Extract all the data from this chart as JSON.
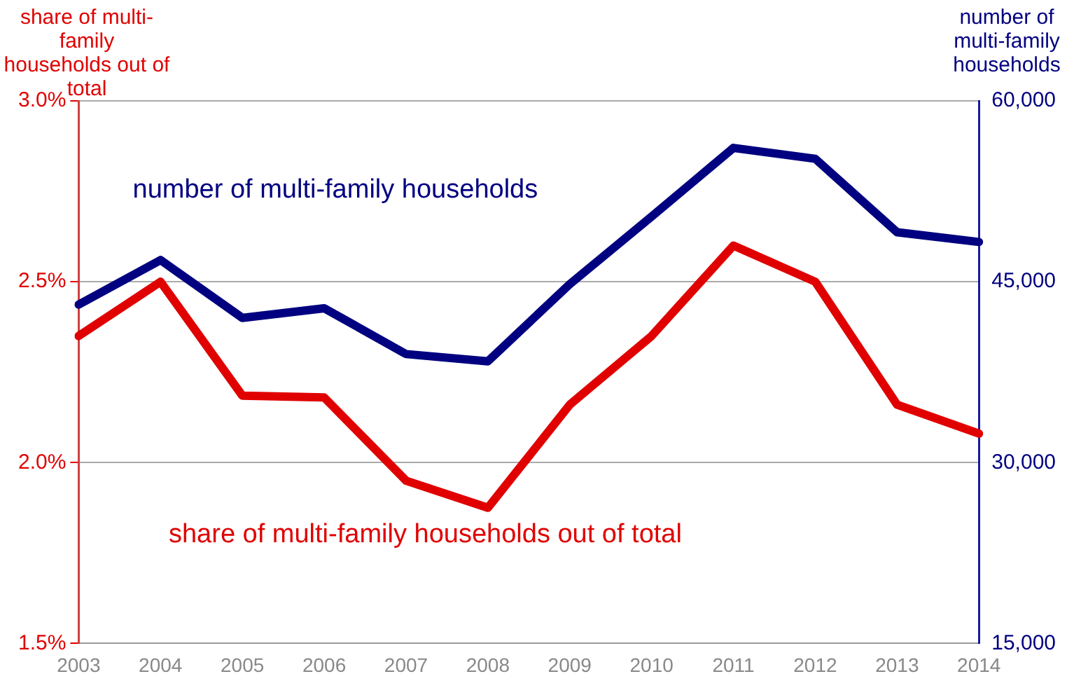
{
  "chart_data": {
    "type": "line",
    "ylabel": "share of multi-family households out of total",
    "y2label": "number of multi-family households",
    "categories": [
      "2003",
      "2004",
      "2005",
      "2006",
      "2007",
      "2008",
      "2009",
      "2010",
      "2011",
      "2012",
      "2013",
      "2014"
    ],
    "series": [
      {
        "name": "share of multi-family households out of total",
        "color": "#e00000",
        "values": [
          2.35,
          2.5,
          2.185,
          2.18,
          1.95,
          1.875,
          2.16,
          2.35,
          2.6,
          2.5,
          2.16,
          2.08
        ]
      },
      {
        "name": "number of multi-family households",
        "color": "#000080",
        "axis": "y2",
        "values": [
          43100,
          46800,
          42000,
          42800,
          39000,
          38400,
          44800,
          50400,
          56100,
          55200,
          49100,
          48300
        ]
      }
    ],
    "ylim": [
      1.5,
      3.0
    ],
    "yticks": [
      {
        "value": 1.5,
        "label": "1.5%"
      },
      {
        "value": 2.0,
        "label": "2.0%"
      },
      {
        "value": 2.5,
        "label": "2.5%"
      },
      {
        "value": 3.0,
        "label": "3.0%"
      }
    ],
    "y2lim": [
      15000,
      60000
    ],
    "y2ticks": [
      {
        "value": 15000,
        "label": "15,000"
      },
      {
        "value": 30000,
        "label": "30,000"
      },
      {
        "value": 45000,
        "label": "45,000"
      },
      {
        "value": 60000,
        "label": "60,000"
      }
    ],
    "grid": "y",
    "legend": false,
    "marker": "none",
    "line_style": "solid"
  }
}
